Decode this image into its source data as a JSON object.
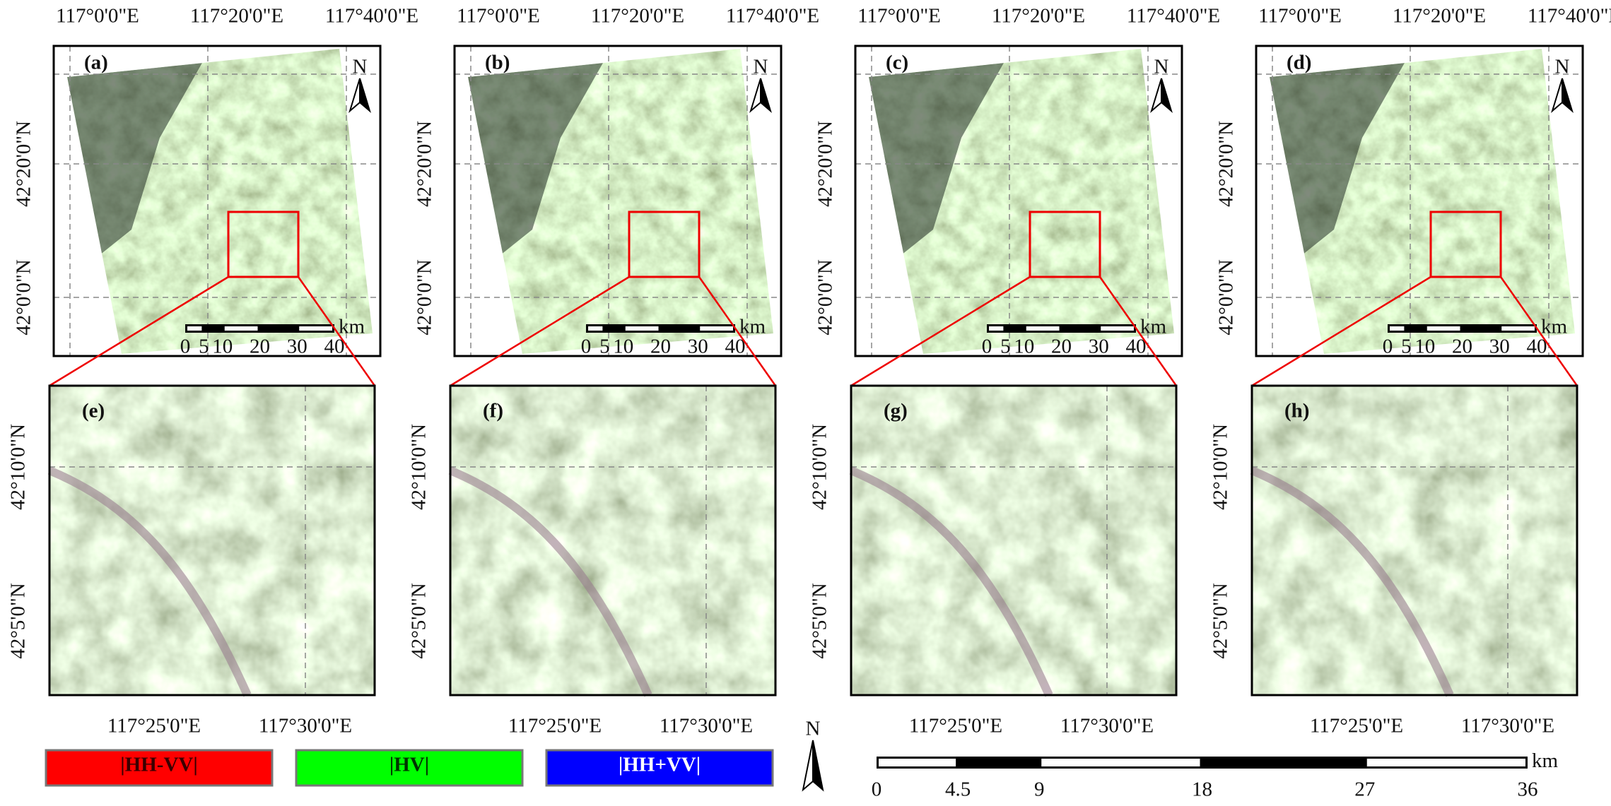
{
  "overview_panels": [
    {
      "label": "(a)"
    },
    {
      "label": "(b)"
    },
    {
      "label": "(c)"
    },
    {
      "label": "(d)"
    }
  ],
  "detail_panels": [
    {
      "label": "(e)"
    },
    {
      "label": "(f)"
    },
    {
      "label": "(g)"
    },
    {
      "label": "(h)"
    }
  ],
  "overview_axes": {
    "x_ticks": [
      "117°0'0\"E",
      "117°20'0\"E",
      "117°40'0\"E"
    ],
    "y_ticks": [
      "42°20'0\"N",
      "42°0'0\"N"
    ]
  },
  "overview_scale": {
    "ticks": [
      0,
      5,
      10,
      20,
      30,
      40
    ],
    "unit": "km"
  },
  "detail_axes": {
    "x_ticks": [
      "117°25'0\"E",
      "117°30'0\"E"
    ],
    "y_ticks": [
      "42°10'0\"N",
      "42°5'0\"N"
    ]
  },
  "north": "N",
  "legend": [
    {
      "label": "|HH-VV|",
      "color": "#ff0000",
      "text_color": "#3a0000"
    },
    {
      "label": "|HV|",
      "color": "#00ff00",
      "text_color": "#003300"
    },
    {
      "label": "|HH+VV|",
      "color": "#0000ff",
      "text_color": "#ffffff"
    }
  ],
  "scale_bar": {
    "ticks": [
      0,
      4.5,
      9,
      18,
      27,
      36
    ],
    "unit": "km"
  }
}
